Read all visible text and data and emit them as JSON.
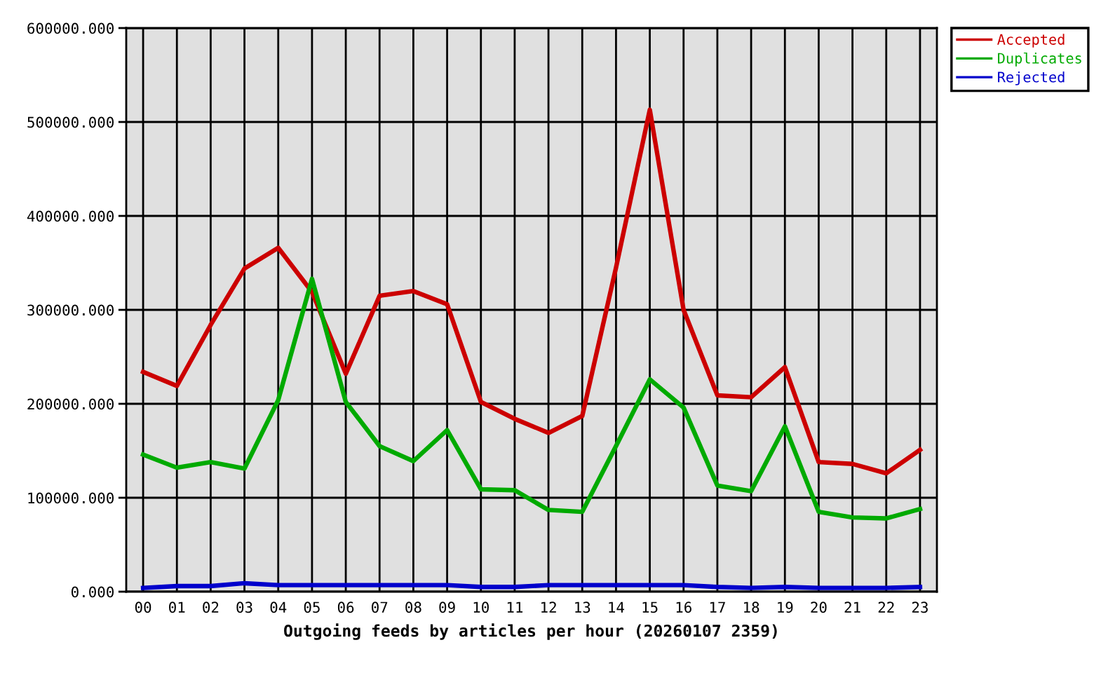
{
  "chart_data": {
    "type": "line",
    "xlabel": "Outgoing feeds by articles per hour (20260107 2359)",
    "categories": [
      "00",
      "01",
      "02",
      "03",
      "04",
      "05",
      "06",
      "07",
      "08",
      "09",
      "10",
      "11",
      "12",
      "13",
      "14",
      "15",
      "16",
      "17",
      "18",
      "19",
      "20",
      "21",
      "22",
      "23"
    ],
    "series": [
      {
        "name": "Accepted",
        "color": "#cc0000",
        "values": [
          234000,
          219000,
          284000,
          344000,
          366000,
          319000,
          232000,
          315000,
          320000,
          306000,
          202000,
          184000,
          169000,
          187000,
          345000,
          513000,
          300000,
          209000,
          207000,
          239000,
          138000,
          136000,
          126000,
          151000
        ]
      },
      {
        "name": "Duplicates",
        "color": "#00aa00",
        "values": [
          146000,
          132000,
          138000,
          131000,
          204000,
          333000,
          202000,
          155000,
          139000,
          172000,
          109000,
          108000,
          87000,
          85000,
          155000,
          226000,
          196000,
          113000,
          107000,
          176000,
          85000,
          79000,
          78000,
          88000
        ]
      },
      {
        "name": "Rejected",
        "color": "#0000cc",
        "values": [
          4000,
          6000,
          6000,
          9000,
          7000,
          7000,
          7000,
          7000,
          7000,
          7000,
          5000,
          5000,
          7000,
          7000,
          7000,
          7000,
          7000,
          5000,
          4000,
          5000,
          4000,
          4000,
          4000,
          5000
        ]
      }
    ],
    "ylim": [
      0,
      600000
    ],
    "yticks": [
      {
        "value": 0,
        "label": "0.000"
      },
      {
        "value": 100000,
        "label": "100000.000"
      },
      {
        "value": 200000,
        "label": "200000.000"
      },
      {
        "value": 300000,
        "label": "300000.000"
      },
      {
        "value": 400000,
        "label": "400000.000"
      },
      {
        "value": 500000,
        "label": "500000.000"
      },
      {
        "value": 600000,
        "label": "600000.000"
      }
    ],
    "grid": true,
    "legend": "top right",
    "line_style": "solid"
  }
}
